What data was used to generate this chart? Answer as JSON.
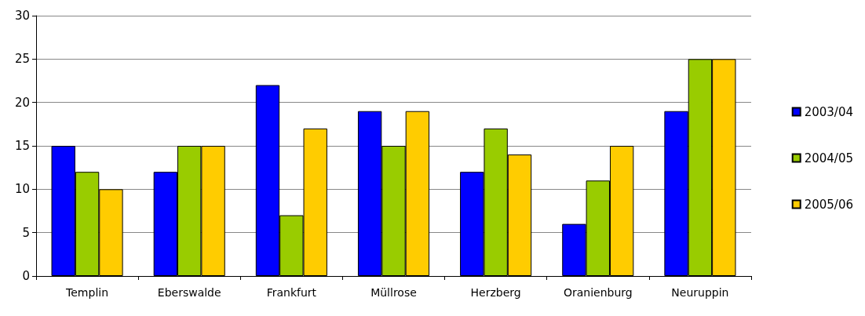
{
  "chart_data": {
    "type": "bar",
    "categories": [
      "Templin",
      "Eberswalde",
      "Frankfurt",
      "Müllrose",
      "Herzberg",
      "Oranienburg",
      "Neuruppin"
    ],
    "series": [
      {
        "name": "2003/04",
        "color": "#0000ff",
        "values": [
          15,
          12,
          22,
          19,
          12,
          6,
          19
        ]
      },
      {
        "name": "2004/05",
        "color": "#99cc00",
        "values": [
          12,
          15,
          7,
          15,
          17,
          11,
          25
        ]
      },
      {
        "name": "2005/06",
        "color": "#ffcc00",
        "values": [
          10,
          15,
          17,
          19,
          14,
          15,
          25
        ]
      }
    ],
    "ylim": [
      0,
      30
    ],
    "yticks": [
      0,
      5,
      10,
      15,
      20,
      25,
      30
    ],
    "grid": "y",
    "legend": "right"
  }
}
